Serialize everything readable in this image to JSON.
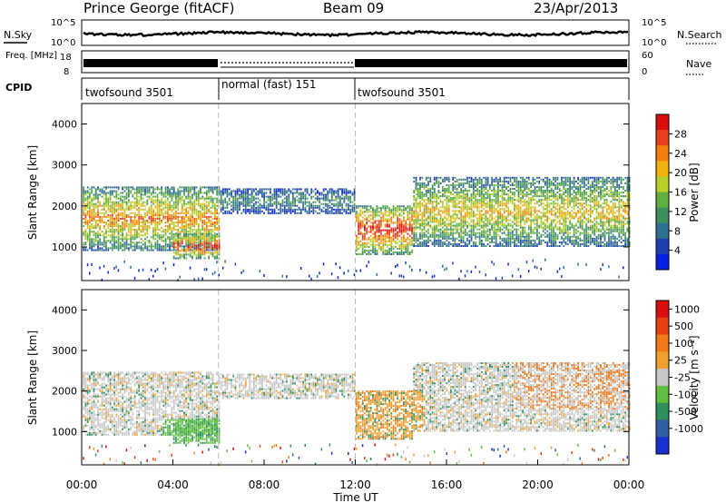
{
  "header": {
    "station": "Prince George (fitACF)",
    "beam": "Beam 09",
    "date": "23/Apr/2013"
  },
  "chart_data": [
    {
      "type": "line",
      "panel": "noise",
      "left_label": "N.Sky",
      "right_label": "N.Search",
      "left_ticks": [
        "10^5",
        "10^0"
      ],
      "right_ticks": [
        "10^5",
        "10^0"
      ],
      "colors": {
        "sky": "#000000",
        "search": "#000000"
      }
    },
    {
      "type": "line",
      "panel": "frequency",
      "left_label": "Freq. [MHz]",
      "right_label": "Nave",
      "left_ticks": [
        "18",
        "8"
      ],
      "right_ticks": [
        "60",
        "0"
      ]
    },
    {
      "type": "table",
      "panel": "cpid",
      "label": "CPID",
      "segments": [
        {
          "name": "twofsound 3501",
          "start_hour": 0,
          "end_hour": 6
        },
        {
          "name": "normal (fast) 151",
          "start_hour": 6,
          "end_hour": 12
        },
        {
          "name": "twofsound 3501",
          "start_hour": 12,
          "end_hour": 24
        }
      ]
    },
    {
      "type": "heatmap",
      "panel": "power",
      "ylabel": "Slant Range [km]",
      "yticks": [
        "4000",
        "3000",
        "2000",
        "1000"
      ],
      "ylim": [
        180,
        4500
      ],
      "xlim": [
        0,
        24
      ],
      "colorbar_label": "Power [dB]",
      "colorbar_ticks": [
        "28",
        "24",
        "20",
        "16",
        "12",
        "8",
        "4"
      ],
      "colorbar_range": [
        0,
        32
      ],
      "colorbar_colors": [
        "#0b1fe0",
        "#1f3fb0",
        "#2f6f8f",
        "#3f8f5f",
        "#5faf3f",
        "#b8cf28",
        "#f0b010",
        "#f07f10",
        "#e8401a",
        "#d80f0f"
      ],
      "bands": [
        {
          "start_hour": 0.0,
          "end_hour": 6.0,
          "range_low": 900,
          "range_high": 2450,
          "peak": "high"
        },
        {
          "start_hour": 4.0,
          "end_hour": 6.0,
          "range_low": 700,
          "range_high": 1300,
          "peak": "very-high"
        },
        {
          "start_hour": 6.0,
          "end_hour": 12.0,
          "range_low": 1800,
          "range_high": 2400,
          "peak": "low"
        },
        {
          "start_hour": 12.0,
          "end_hour": 14.5,
          "range_low": 800,
          "range_high": 2000,
          "peak": "very-high"
        },
        {
          "start_hour": 14.5,
          "end_hour": 24.0,
          "range_low": 1000,
          "range_high": 2700,
          "peak": "medium"
        }
      ]
    },
    {
      "type": "heatmap",
      "panel": "velocity",
      "ylabel": "Slant Range [km]",
      "yticks": [
        "4000",
        "3000",
        "2000",
        "1000"
      ],
      "ylim": [
        180,
        4500
      ],
      "xlim": [
        0,
        24
      ],
      "xlabel": "Time UT",
      "xticks": [
        "00:00",
        "04:00",
        "08:00",
        "12:00",
        "16:00",
        "20:00",
        "00:00"
      ],
      "colorbar_label": "Velocity [m s⁻¹]",
      "colorbar_ticks": [
        "1000",
        "500",
        "100",
        "25",
        "-25",
        "-100",
        "-500",
        "-1000"
      ],
      "colorbar_colors": [
        "#1a2fd0",
        "#2f5fa0",
        "#2f8f5f",
        "#5fbf3f",
        "#c8c8c8",
        "#f0a030",
        "#f07818",
        "#e84010",
        "#d80f0f"
      ]
    }
  ]
}
